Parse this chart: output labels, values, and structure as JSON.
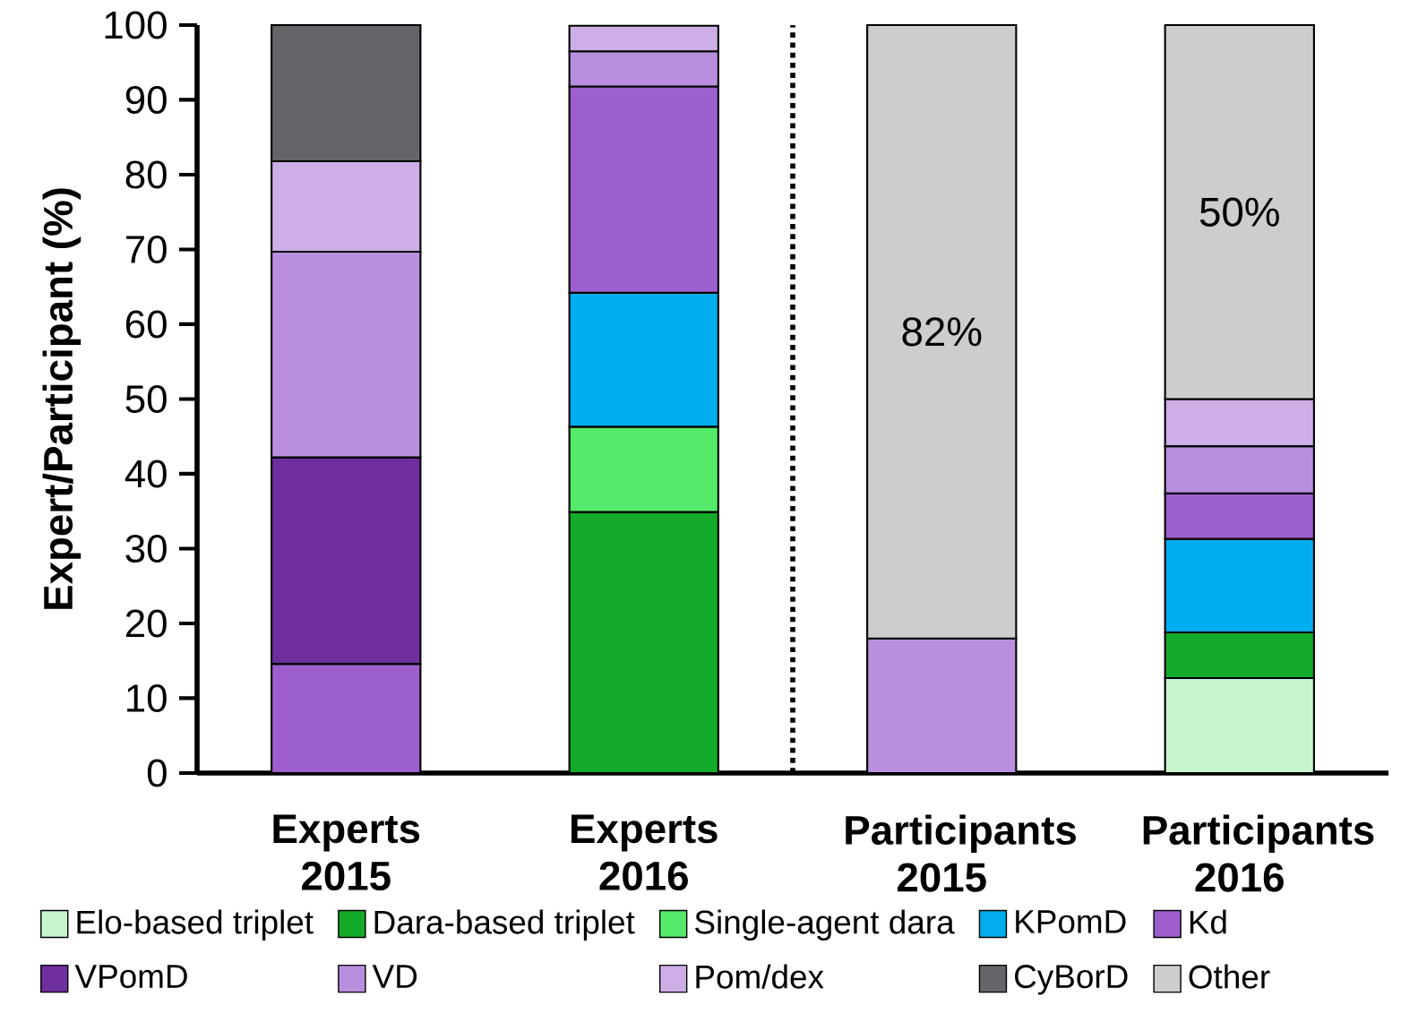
{
  "chart_data": {
    "type": "bar",
    "stacked": true,
    "ylabel": "Expert/Participant (%)",
    "categories": [
      "Experts 2015",
      "Experts 2016",
      "Participants 2015",
      "Participants 2016"
    ],
    "ylim": [
      0,
      100
    ],
    "yticks": [
      0,
      10,
      20,
      30,
      40,
      50,
      60,
      70,
      80,
      90,
      100
    ],
    "legend": "bottom",
    "grid": false,
    "series": [
      {
        "name": "Elo-based triplet",
        "color": "#c6f5cf",
        "values": [
          null,
          null,
          null,
          12.7
        ]
      },
      {
        "name": "Dara-based triplet",
        "color": "#14ab2a",
        "values": [
          null,
          34.9,
          null,
          6.1
        ]
      },
      {
        "name": "Single-agent dara",
        "color": "#55ea6a",
        "values": [
          null,
          11.4,
          null,
          null
        ]
      },
      {
        "name": "KPomD",
        "color": "#00aeef",
        "values": [
          null,
          17.9,
          null,
          12.5
        ]
      },
      {
        "name": "Kd",
        "color": "#9e5fce",
        "values": [
          14.6,
          27.6,
          null,
          6.1
        ]
      },
      {
        "name": "VPomD",
        "color": "#6f2e9e",
        "values": [
          27.6,
          null,
          null,
          null
        ]
      },
      {
        "name": "VD",
        "color": "#b98ede",
        "values": [
          27.5,
          4.7,
          18,
          6.3
        ]
      },
      {
        "name": "Pom/dex",
        "color": "#cdaee6",
        "values": [
          12.1,
          3.4,
          null,
          6.3
        ]
      },
      {
        "name": "CyBorD",
        "color": "#656569",
        "values": [
          18.2,
          null,
          null,
          null
        ]
      },
      {
        "name": "Other",
        "color": "#cdcdcf",
        "values": [
          null,
          null,
          82,
          50
        ],
        "value_labels": [
          null,
          null,
          "82%",
          "50%"
        ]
      }
    ]
  }
}
